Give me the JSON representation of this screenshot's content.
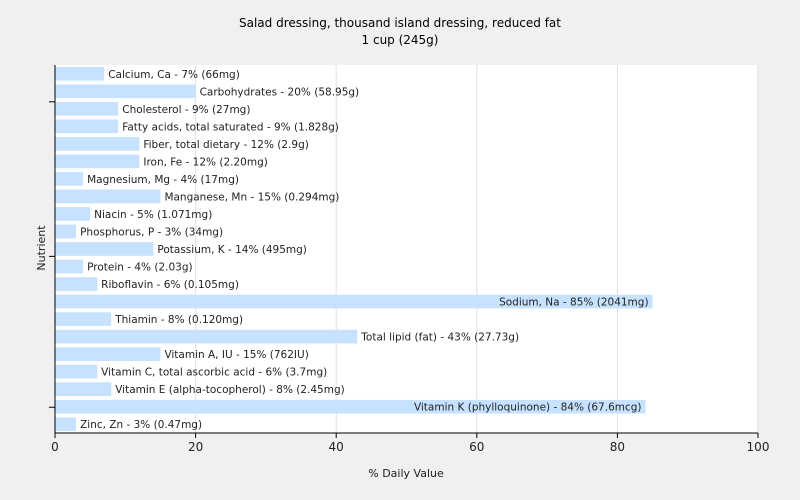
{
  "chart_data": {
    "type": "bar",
    "orientation": "horizontal",
    "title": "Salad dressing, thousand island dressing, reduced fat",
    "subtitle": "1 cup (245g)",
    "xlabel": "% Daily Value",
    "ylabel": "Nutrient",
    "xlim": [
      0,
      100
    ],
    "xticks": [
      0,
      20,
      40,
      60,
      80,
      100
    ],
    "grid": true,
    "bar_color": "#c6e2ff",
    "bars": [
      {
        "label": "Calcium, Ca - 7% (66mg)",
        "value": 7
      },
      {
        "label": "Carbohydrates - 20% (58.95g)",
        "value": 20
      },
      {
        "label": "Cholesterol - 9% (27mg)",
        "value": 9
      },
      {
        "label": "Fatty acids, total saturated - 9% (1.828g)",
        "value": 9
      },
      {
        "label": "Fiber, total dietary - 12% (2.9g)",
        "value": 12
      },
      {
        "label": "Iron, Fe - 12% (2.20mg)",
        "value": 12
      },
      {
        "label": "Magnesium, Mg - 4% (17mg)",
        "value": 4
      },
      {
        "label": "Manganese, Mn - 15% (0.294mg)",
        "value": 15
      },
      {
        "label": "Niacin - 5% (1.071mg)",
        "value": 5
      },
      {
        "label": "Phosphorus, P - 3% (34mg)",
        "value": 3
      },
      {
        "label": "Potassium, K - 14% (495mg)",
        "value": 14
      },
      {
        "label": "Protein - 4% (2.03g)",
        "value": 4
      },
      {
        "label": "Riboflavin - 6% (0.105mg)",
        "value": 6
      },
      {
        "label": "Sodium, Na - 85% (2041mg)",
        "value": 85
      },
      {
        "label": "Thiamin - 8% (0.120mg)",
        "value": 8
      },
      {
        "label": "Total lipid (fat) - 43% (27.73g)",
        "value": 43
      },
      {
        "label": "Vitamin A, IU - 15% (762IU)",
        "value": 15
      },
      {
        "label": "Vitamin C, total ascorbic acid - 6% (3.7mg)",
        "value": 6
      },
      {
        "label": "Vitamin E (alpha-tocopherol) - 8% (2.45mg)",
        "value": 8
      },
      {
        "label": "Vitamin K (phylloquinone) - 84% (67.6mcg)",
        "value": 84
      },
      {
        "label": "Zinc, Zn - 3% (0.47mg)",
        "value": 3
      }
    ]
  }
}
